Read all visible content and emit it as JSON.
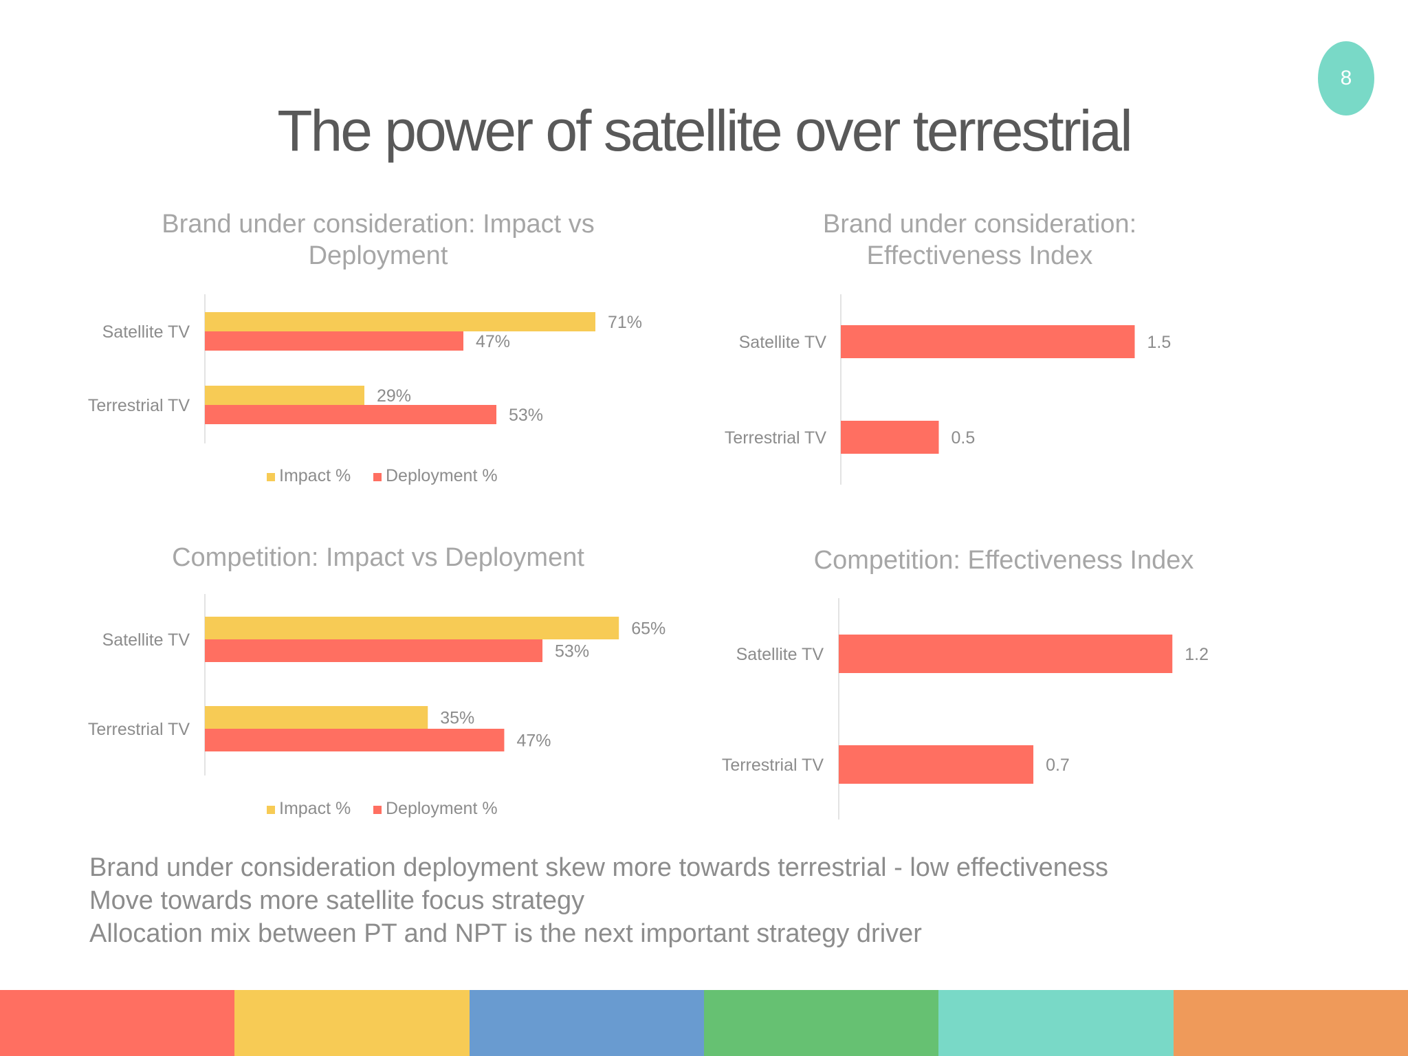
{
  "page_number": "8",
  "title": "The power of satellite over terrestrial",
  "colors": {
    "impact": "#F7CB55",
    "deployment": "#FF6F61",
    "axis": "#E3E3E3",
    "label": "#8C8C8C",
    "title": "#595959",
    "badge": "#79D9C7"
  },
  "chart_data": [
    {
      "type": "bar",
      "orientation": "horizontal",
      "title": "Brand under consideration: Impact vs Deployment",
      "categories": [
        "Satellite TV",
        "Terrestrial TV"
      ],
      "series": [
        {
          "name": "Impact %",
          "values": [
            71,
            29
          ],
          "labels": [
            "71%",
            "29%"
          ]
        },
        {
          "name": "Deployment %",
          "values": [
            47,
            53
          ],
          "labels": [
            "47%",
            "53%"
          ]
        }
      ],
      "xlim": [
        0,
        75
      ],
      "legend": "bottom"
    },
    {
      "type": "bar",
      "orientation": "horizontal",
      "title": "Brand under consideration: Effectiveness Index",
      "categories": [
        "Satellite TV",
        "Terrestrial TV"
      ],
      "series": [
        {
          "name": "Effectiveness Index",
          "values": [
            1.5,
            0.5
          ],
          "labels": [
            "1.5",
            "0.5"
          ]
        }
      ],
      "xlim": [
        0,
        2
      ],
      "legend": "none"
    },
    {
      "type": "bar",
      "orientation": "horizontal",
      "title": "Competition: Impact vs Deployment",
      "categories": [
        "Satellite TV",
        "Terrestrial TV"
      ],
      "series": [
        {
          "name": "Impact %",
          "values": [
            65,
            35
          ],
          "labels": [
            "65%",
            "35%"
          ]
        },
        {
          "name": "Deployment %",
          "values": [
            53,
            47
          ],
          "labels": [
            "53%",
            "47%"
          ]
        }
      ],
      "xlim": [
        0,
        68
      ],
      "legend": "bottom"
    },
    {
      "type": "bar",
      "orientation": "horizontal",
      "title": "Competition: Effectiveness Index",
      "categories": [
        "Satellite TV",
        "Terrestrial TV"
      ],
      "series": [
        {
          "name": "Effectiveness Index",
          "values": [
            1.2,
            0.7
          ],
          "labels": [
            "1.2",
            "0.7"
          ]
        }
      ],
      "xlim": [
        0,
        1.6
      ],
      "legend": "none"
    }
  ],
  "notes": [
    "Brand under consideration deployment skew more towards terrestrial - low effectiveness",
    "Move towards more satellite focus strategy",
    "Allocation mix between PT and NPT is the next important strategy driver"
  ],
  "footer_stripes": [
    "#FF6F61",
    "#F7CB55",
    "#699BD0",
    "#66C172",
    "#79D9C7",
    "#EF9A5A"
  ]
}
